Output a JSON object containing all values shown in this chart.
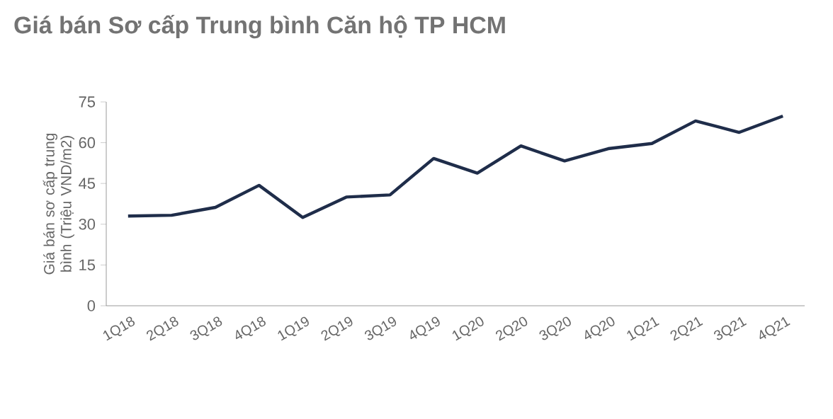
{
  "chart_data": {
    "type": "line",
    "title": "Giá bán Sơ cấp Trung bình Căn hộ TP HCM",
    "ylabel": "Giá bán sơ cấp trung bình (Triệu VND/m2)",
    "categories": [
      "1Q18",
      "2Q18",
      "3Q18",
      "4Q18",
      "1Q19",
      "2Q19",
      "3Q19",
      "4Q19",
      "1Q20",
      "2Q20",
      "3Q20",
      "4Q20",
      "1Q21",
      "2Q21",
      "3Q21",
      "4Q21"
    ],
    "values": [
      33,
      33.3,
      36.2,
      44.3,
      32.5,
      40,
      40.8,
      54.2,
      48.8,
      58.8,
      53.3,
      57.8,
      59.7,
      68,
      63.8,
      69.8
    ],
    "color": "#1f2d4a",
    "ylim": [
      0,
      75
    ],
    "yticks": [
      0,
      15,
      30,
      45,
      60,
      75
    ],
    "marker": "none",
    "line_style": "solid"
  }
}
